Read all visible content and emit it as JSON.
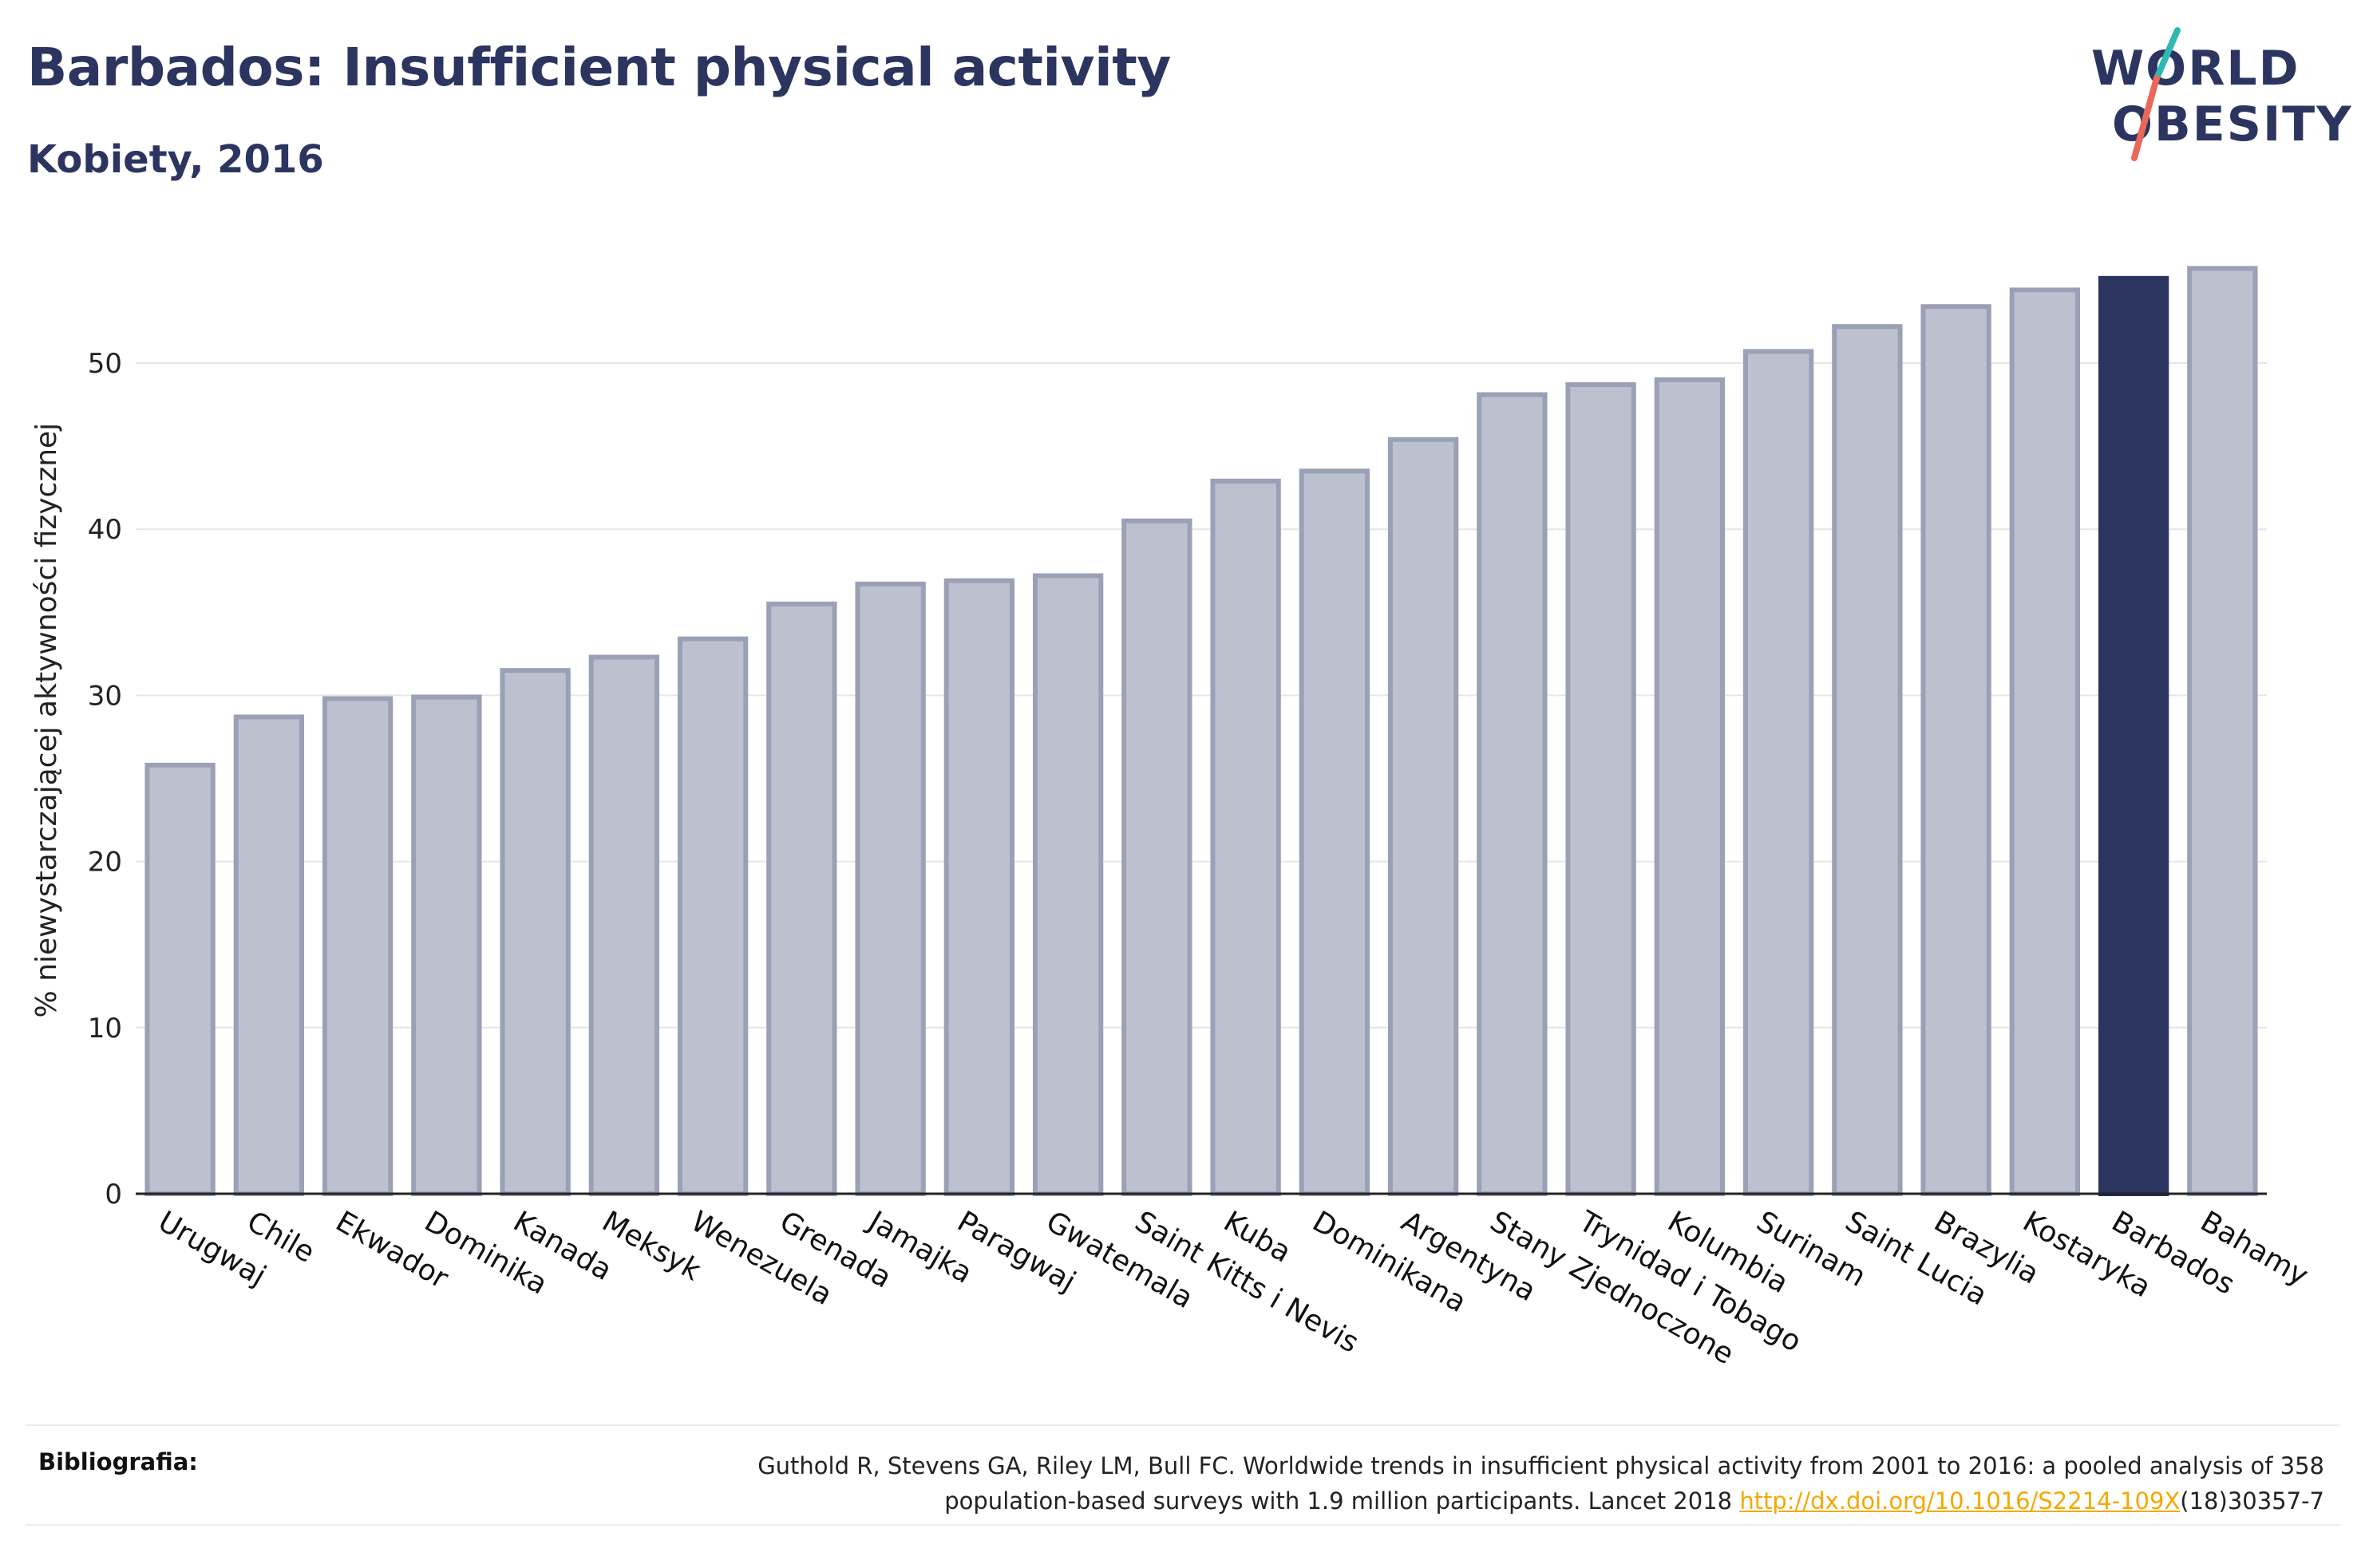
{
  "header": {
    "title": "Barbados: Insufficient physical activity",
    "subtitle": "Kobiety, 2016"
  },
  "logo": {
    "line1": "WORLD",
    "line2": "OBESITY",
    "colors": {
      "text": "#2c3560",
      "slash_top": "#2fb8b0",
      "slash_bottom": "#e8685a"
    }
  },
  "chart_data": {
    "type": "bar",
    "title": "Barbados: Insufficient physical activity",
    "subtitle": "Kobiety, 2016",
    "xlabel": "",
    "ylabel": "% niewystarczającej aktywności fizycznej",
    "ylim": [
      0,
      57
    ],
    "yticks": [
      0,
      10,
      20,
      30,
      40,
      50
    ],
    "grid": true,
    "highlight": "Barbados",
    "colors": {
      "bar": "#bdc1cf",
      "bar_border": "#9aa0b6",
      "highlight": "#2c3560"
    },
    "categories": [
      "Urugwaj",
      "Chile",
      "Ekwador",
      "Dominika",
      "Kanada",
      "Meksyk",
      "Wenezuela",
      "Grenada",
      "Jamajka",
      "Paragwaj",
      "Gwatemala",
      "Saint Kitts i Nevis",
      "Kuba",
      "Dominikana",
      "Argentyna",
      "Stany Zjednoczone",
      "Trynidad i Tobago",
      "Kolumbia",
      "Surinam",
      "Saint Lucia",
      "Brazylia",
      "Kostaryka",
      "Barbados",
      "Bahamy"
    ],
    "values": [
      25.8,
      28.7,
      29.8,
      29.9,
      31.5,
      32.3,
      33.4,
      35.5,
      36.7,
      36.9,
      37.2,
      40.5,
      42.9,
      43.5,
      45.4,
      48.1,
      48.7,
      49.0,
      50.7,
      52.2,
      53.4,
      54.4,
      55.1,
      55.7
    ]
  },
  "footer": {
    "label": "Bibliografia:",
    "text_line1": "Guthold R, Stevens GA, Riley LM, Bull FC. Worldwide trends in insufficient physical activity from 2001 to 2016: a pooled analysis of 358",
    "text_line2_pre": "population-based surveys with 1.9 million participants. Lancet 2018 ",
    "link": "http://dx.doi.org/10.1016/S2214-109X",
    "text_line2_post": "(18)30357-7"
  }
}
